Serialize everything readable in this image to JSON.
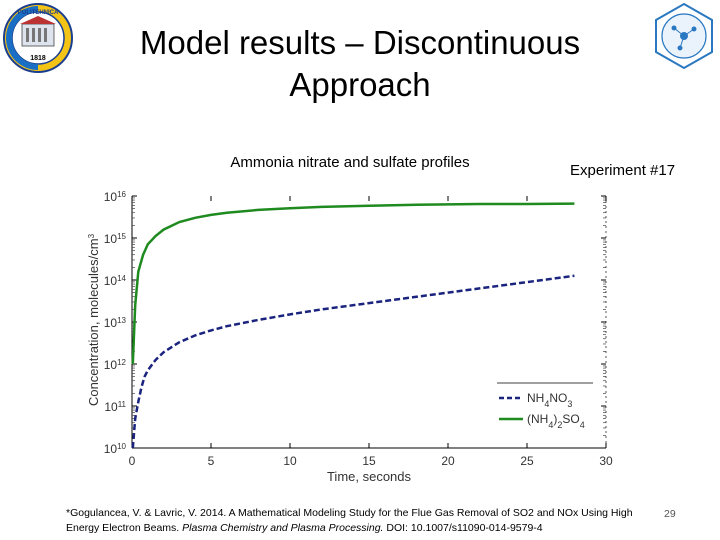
{
  "slide": {
    "title_line1": "Model results – Discontinuous",
    "title_line2": "Approach",
    "chart_title": "Ammonia nitrate and sulfate profiles",
    "experiment": "Experiment #17",
    "citation_text": "*Gogulancea, V. & Lavric, V. 2014. A Mathematical Modeling Study for the Flue Gas Removal of SO2 and NOx Using High Energy Electron Beams. ",
    "citation_journal": "Plasma Chemistry and Plasma Processing.",
    "citation_doi": " DOI: 10.1007/s11090-014-9579-4",
    "page_number": "29",
    "logo_left": {
      "top_text": "POLITEHNICA",
      "year": "1818"
    },
    "logo_right": {
      "icon": "molecule-seal-icon"
    }
  },
  "chart_data": {
    "type": "line",
    "title": "Ammonia nitrate and sulfate profiles",
    "xlabel": "Time, seconds",
    "ylabel": "Concentration, molecules/cm³",
    "xlim": [
      0,
      30
    ],
    "ylim_exp": [
      10,
      16
    ],
    "yscale": "log",
    "x_ticks": [
      0,
      5,
      10,
      15,
      20,
      25,
      30
    ],
    "y_ticks": [
      {
        "exp": 10,
        "label": "10",
        "sup": "10"
      },
      {
        "exp": 11,
        "label": "10",
        "sup": "11"
      },
      {
        "exp": 12,
        "label": "10",
        "sup": "12"
      },
      {
        "exp": 13,
        "label": "10",
        "sup": "13"
      },
      {
        "exp": 14,
        "label": "10",
        "sup": "14"
      },
      {
        "exp": 15,
        "label": "10",
        "sup": "15"
      },
      {
        "exp": 16,
        "label": "10",
        "sup": "16"
      }
    ],
    "legend_position": "bottom-right",
    "series": [
      {
        "key": "nh4no3",
        "name_html": "NH<tspan baseline-shift='sub' font-size='8'>4</tspan>NO<tspan baseline-shift='sub' font-size='8'>3</tspan>",
        "label_main": "NH",
        "label_sub1": "4",
        "label_mid": "NO",
        "label_sub2": "3",
        "color": "#1a237e",
        "style": "dashed",
        "x": [
          0.05,
          0.2,
          0.4,
          0.6,
          0.8,
          1,
          1.5,
          2,
          3,
          4,
          5,
          6,
          8,
          10,
          12,
          15,
          18,
          20,
          22,
          25,
          28
        ],
        "y_log10": [
          10.0,
          10.7,
          11.1,
          11.45,
          11.7,
          11.85,
          12.1,
          12.28,
          12.52,
          12.68,
          12.8,
          12.9,
          13.05,
          13.18,
          13.3,
          13.45,
          13.6,
          13.7,
          13.8,
          13.95,
          14.1
        ]
      },
      {
        "key": "nh42so4",
        "label_main": "(NH",
        "label_sub1": "4",
        "label_mid": ")",
        "label_sub2": "2",
        "label_end": "SO",
        "label_sub3": "4",
        "color": "#1f8a1f",
        "style": "solid",
        "x": [
          0.05,
          0.2,
          0.4,
          0.7,
          1,
          1.5,
          2,
          3,
          4,
          5,
          6,
          8,
          10,
          12,
          15,
          18,
          20,
          22,
          25,
          28
        ],
        "y_log10": [
          12.0,
          13.4,
          14.2,
          14.6,
          14.85,
          15.05,
          15.2,
          15.38,
          15.48,
          15.55,
          15.6,
          15.67,
          15.71,
          15.74,
          15.77,
          15.79,
          15.8,
          15.81,
          15.81,
          15.82
        ]
      }
    ]
  }
}
